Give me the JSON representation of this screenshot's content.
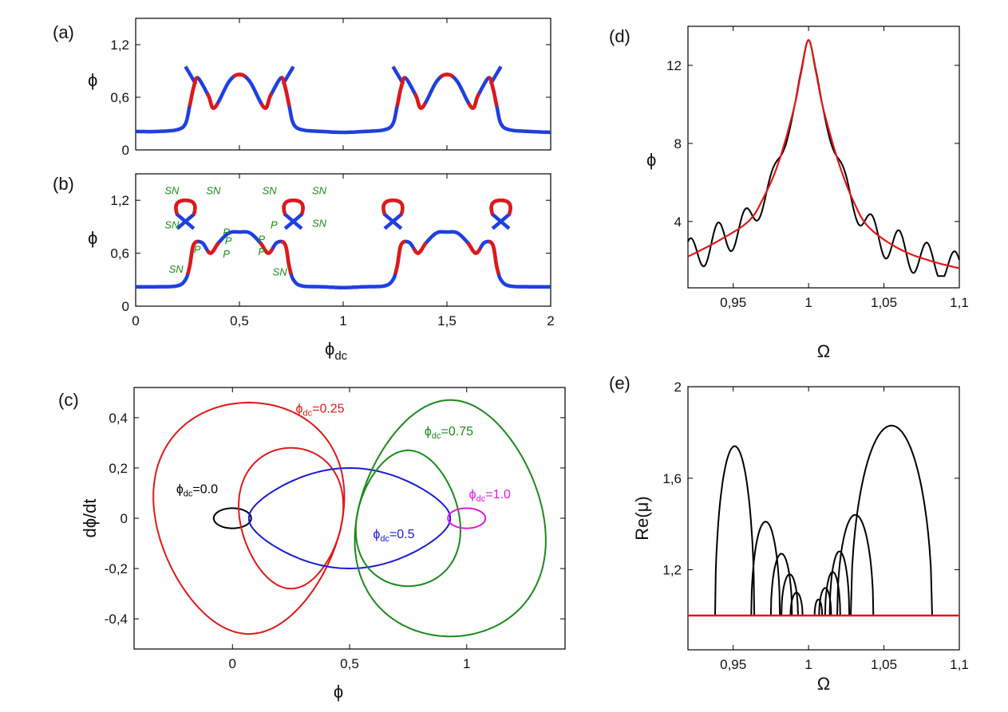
{
  "chart_data": [
    {
      "id": "a",
      "panel_label": "(a)",
      "type": "line",
      "title": "",
      "xlabel": "",
      "ylabel": "ϕ",
      "xlim": [
        0,
        2
      ],
      "ylim": [
        0,
        1.5
      ],
      "xticks": [
        0,
        0.5,
        1,
        1.5,
        2
      ],
      "xtick_labels": [],
      "yticks": [
        0,
        0.6,
        1.2
      ],
      "ytick_labels": [
        "0",
        "0,6",
        "1,2"
      ],
      "colors": {
        "stable": "#1f3fe0",
        "unstable": "#e01818"
      },
      "x": [
        0,
        0.1,
        0.2,
        0.24,
        0.26,
        0.28,
        0.3,
        0.35,
        0.38,
        0.45,
        0.5,
        0.55,
        0.62,
        0.65,
        0.7,
        0.72,
        0.74,
        0.76,
        0.8,
        0.9,
        1.0,
        1.1,
        1.2,
        1.24,
        1.26,
        1.28,
        1.3,
        1.35,
        1.38,
        1.45,
        1.5,
        1.55,
        1.62,
        1.65,
        1.7,
        1.72,
        1.74,
        1.76,
        1.8,
        1.9,
        2.0
      ],
      "y": [
        0.21,
        0.21,
        0.23,
        0.3,
        0.5,
        0.72,
        0.82,
        0.62,
        0.48,
        0.78,
        0.86,
        0.78,
        0.48,
        0.62,
        0.82,
        0.72,
        0.5,
        0.3,
        0.23,
        0.21,
        0.2,
        0.21,
        0.23,
        0.3,
        0.5,
        0.72,
        0.82,
        0.62,
        0.48,
        0.78,
        0.86,
        0.78,
        0.48,
        0.62,
        0.82,
        0.72,
        0.5,
        0.3,
        0.23,
        0.21,
        0.2
      ],
      "branch_tips": [
        {
          "x": [
            0.24,
            0.29
          ],
          "y": [
            0.95,
            0.75
          ]
        },
        {
          "x": [
            0.76,
            0.71
          ],
          "y": [
            0.95,
            0.75
          ]
        },
        {
          "x": [
            1.24,
            1.29
          ],
          "y": [
            0.95,
            0.75
          ]
        },
        {
          "x": [
            1.76,
            1.71
          ],
          "y": [
            0.95,
            0.75
          ]
        }
      ],
      "unstable_x_ranges": [
        [
          0.26,
          0.3
        ],
        [
          0.34,
          0.4
        ],
        [
          0.47,
          0.53
        ],
        [
          0.6,
          0.66
        ],
        [
          0.7,
          0.74
        ],
        [
          1.26,
          1.3
        ],
        [
          1.34,
          1.4
        ],
        [
          1.47,
          1.53
        ],
        [
          1.6,
          1.66
        ],
        [
          1.7,
          1.74
        ]
      ]
    },
    {
      "id": "b",
      "panel_label": "(b)",
      "type": "line",
      "title": "",
      "xlabel": "ϕ",
      "xlabel_sub": "dc",
      "ylabel": "ϕ",
      "xlim": [
        0,
        2
      ],
      "ylim": [
        0,
        1.5
      ],
      "xticks": [
        0,
        0.5,
        1,
        1.5,
        2
      ],
      "xtick_labels": [
        "0",
        "0,5",
        "1",
        "1,5",
        "2"
      ],
      "yticks": [
        0,
        0.6,
        1.2
      ],
      "ytick_labels": [
        "0",
        "0,6",
        "1,2"
      ],
      "colors": {
        "stable": "#1f3fe0",
        "unstable": "#e01818"
      },
      "lower_branch": {
        "x": [
          0,
          0.1,
          0.2,
          0.24,
          0.26,
          0.28,
          0.32,
          0.36,
          0.4,
          0.45,
          0.5,
          0.55,
          0.6,
          0.64,
          0.68,
          0.72,
          0.74,
          0.76,
          0.8,
          0.9,
          1.0,
          1.1,
          1.2,
          1.24,
          1.26,
          1.28,
          1.32,
          1.36,
          1.4,
          1.45,
          1.5,
          1.55,
          1.6,
          1.64,
          1.68,
          1.72,
          1.74,
          1.76,
          1.8,
          1.9,
          2.0
        ],
        "y": [
          0.22,
          0.22,
          0.23,
          0.3,
          0.45,
          0.7,
          0.72,
          0.6,
          0.72,
          0.83,
          0.84,
          0.83,
          0.72,
          0.6,
          0.72,
          0.7,
          0.45,
          0.3,
          0.23,
          0.22,
          0.21,
          0.22,
          0.23,
          0.3,
          0.45,
          0.7,
          0.72,
          0.6,
          0.72,
          0.83,
          0.84,
          0.83,
          0.72,
          0.6,
          0.72,
          0.7,
          0.45,
          0.3,
          0.23,
          0.22,
          0.22
        ]
      },
      "loops": [
        {
          "x": [
            0.2,
            0.28
          ],
          "y": [
            0.88,
            1.2
          ]
        },
        {
          "x": [
            0.72,
            0.8
          ],
          "y": [
            0.88,
            1.2
          ]
        },
        {
          "x": [
            1.2,
            1.28
          ],
          "y": [
            0.88,
            1.2
          ]
        },
        {
          "x": [
            1.72,
            1.8
          ],
          "y": [
            0.88,
            1.2
          ]
        }
      ],
      "annotations": [
        {
          "text": "SN",
          "x": 0.14,
          "y": 1.27
        },
        {
          "text": "SN",
          "x": 0.34,
          "y": 1.27
        },
        {
          "text": "SN",
          "x": 0.14,
          "y": 0.88
        },
        {
          "text": "P",
          "x": 0.28,
          "y": 0.6
        },
        {
          "text": "SN",
          "x": 0.16,
          "y": 0.38
        },
        {
          "text": "P",
          "x": 0.42,
          "y": 0.8
        },
        {
          "text": "P",
          "x": 0.43,
          "y": 0.7
        },
        {
          "text": "P",
          "x": 0.42,
          "y": 0.55
        },
        {
          "text": "P",
          "x": 0.65,
          "y": 0.88
        },
        {
          "text": "P",
          "x": 0.59,
          "y": 0.72
        },
        {
          "text": "P",
          "x": 0.59,
          "y": 0.58
        },
        {
          "text": "SN",
          "x": 0.61,
          "y": 1.27
        },
        {
          "text": "SN",
          "x": 0.85,
          "y": 1.27
        },
        {
          "text": "SN",
          "x": 0.85,
          "y": 0.9
        },
        {
          "text": "SN",
          "x": 0.66,
          "y": 0.35
        }
      ]
    },
    {
      "id": "c",
      "panel_label": "(c)",
      "type": "line",
      "title": "",
      "xlabel": "ϕ",
      "ylabel": "dϕ/dt",
      "xlim": [
        -0.42,
        1.42
      ],
      "ylim": [
        -0.52,
        0.52
      ],
      "xticks": [
        0,
        0.5,
        1
      ],
      "xtick_labels": [
        "0",
        "0,5",
        "1"
      ],
      "yticks": [
        -0.4,
        -0.2,
        0,
        0.2,
        0.4
      ],
      "ytick_labels": [
        "-0,4",
        "-0,2",
        "0",
        "0,2",
        "0,4"
      ],
      "series": [
        {
          "name": "ϕdc=0.0",
          "label_main": "ϕ",
          "label_sub": "dc",
          "label_val": "=0.0",
          "color": "#000000",
          "label_pos": [
            -0.24,
            0.1
          ]
        },
        {
          "name": "ϕdc=0.25",
          "label_main": "ϕ",
          "label_sub": "dc",
          "label_val": "=0.25",
          "color": "#e01818",
          "label_pos": [
            0.27,
            0.42
          ]
        },
        {
          "name": "ϕdc=0.5",
          "label_main": "ϕ",
          "label_sub": "dc",
          "label_val": "=0.5",
          "color": "#1a1ad6",
          "label_pos": [
            0.6,
            -0.08
          ]
        },
        {
          "name": "ϕdc=0.75",
          "label_main": "ϕ",
          "label_sub": "dc",
          "label_val": "=0.75",
          "color": "#1a8a1a",
          "label_pos": [
            0.82,
            0.33
          ]
        },
        {
          "name": "ϕdc=1.0",
          "label_main": "ϕ",
          "label_sub": "dc",
          "label_val": "=1.0",
          "color": "#e019e0",
          "label_pos": [
            1.01,
            0.08
          ]
        }
      ]
    },
    {
      "id": "d",
      "panel_label": "(d)",
      "type": "line",
      "title": "",
      "xlabel": "Ω",
      "ylabel": "ϕ",
      "xlim": [
        0.92,
        1.1
      ],
      "ylim": [
        0.6,
        14
      ],
      "xticks": [
        0.95,
        1,
        1.05,
        1.1
      ],
      "xtick_labels": [
        "0,95",
        "1",
        "1,05",
        "1,1"
      ],
      "yticks": [
        4,
        8,
        12
      ],
      "ytick_labels": [
        "4",
        "8",
        "12"
      ],
      "series": [
        {
          "name": "black",
          "color": "#000000"
        },
        {
          "name": "red",
          "color": "#e01818",
          "x": [
            0.92,
            0.94,
            0.96,
            0.97,
            0.98,
            0.99,
            0.995,
            1.0,
            1.005,
            1.01,
            1.02,
            1.03,
            1.04,
            1.06,
            1.08,
            1.1
          ],
          "y": [
            2.2,
            3.0,
            4.0,
            5.2,
            7.0,
            9.7,
            11.6,
            13.3,
            11.6,
            9.7,
            7.0,
            5.0,
            3.7,
            2.6,
            2.0,
            1.6
          ]
        }
      ]
    },
    {
      "id": "e",
      "panel_label": "(e)",
      "type": "line",
      "title": "",
      "xlabel": "Ω",
      "ylabel": "Re(μ)",
      "xlim": [
        0.92,
        1.1
      ],
      "ylim": [
        0.85,
        2.0
      ],
      "xticks": [
        0.95,
        1,
        1.05,
        1.1
      ],
      "xtick_labels": [
        "0,95",
        "1",
        "1,05",
        "1,1"
      ],
      "yticks": [
        1.2,
        1.6,
        2.0
      ],
      "ytick_labels": [
        "1,2",
        "1,6",
        "2"
      ],
      "baseline": {
        "y": 1.0,
        "color": "#e01818"
      },
      "arches": [
        {
          "x0": 0.938,
          "x1": 0.964,
          "peak": 1.74
        },
        {
          "x0": 0.962,
          "x1": 0.981,
          "peak": 1.41
        },
        {
          "x0": 0.975,
          "x1": 0.989,
          "peak": 1.27
        },
        {
          "x0": 0.982,
          "x1": 0.993,
          "peak": 1.18
        },
        {
          "x0": 0.988,
          "x1": 0.996,
          "peak": 1.1
        },
        {
          "x0": 1.004,
          "x1": 1.009,
          "peak": 1.07
        },
        {
          "x0": 1.007,
          "x1": 1.015,
          "peak": 1.12
        },
        {
          "x0": 1.011,
          "x1": 1.021,
          "peak": 1.19
        },
        {
          "x0": 1.014,
          "x1": 1.027,
          "peak": 1.28
        },
        {
          "x0": 1.019,
          "x1": 1.043,
          "peak": 1.44
        },
        {
          "x0": 1.028,
          "x1": 1.082,
          "peak": 1.83
        }
      ]
    }
  ]
}
